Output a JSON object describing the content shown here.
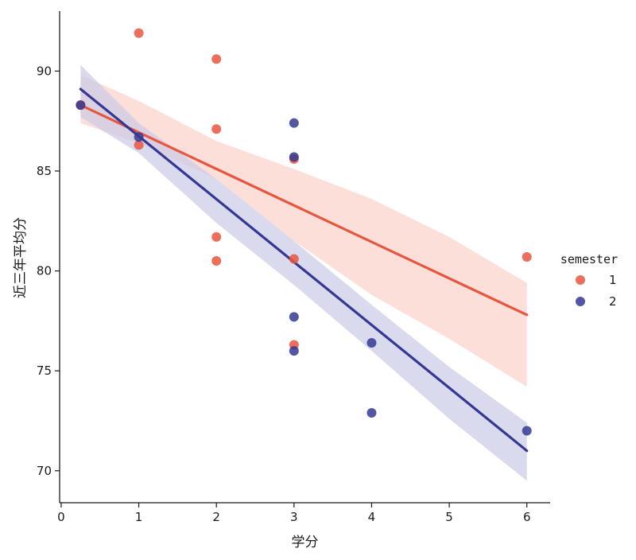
{
  "chart_data": {
    "type": "scatter",
    "title": "",
    "xlabel": "学分",
    "ylabel": "近三年平均分",
    "xlim": [
      -0.02,
      6.3
    ],
    "ylim": [
      68.4,
      93.0
    ],
    "xticks": [
      0,
      1,
      2,
      3,
      4,
      5,
      6
    ],
    "yticks": [
      70,
      75,
      80,
      85,
      90
    ],
    "grid": false,
    "legend": {
      "title": "semester",
      "placement": "right"
    },
    "series": [
      {
        "name": "1",
        "color": "#e8563f",
        "band_color": "#fcd2cb",
        "points": [
          {
            "x": 0.25,
            "y": 88.3
          },
          {
            "x": 1,
            "y": 91.9
          },
          {
            "x": 1,
            "y": 86.3
          },
          {
            "x": 2,
            "y": 90.6
          },
          {
            "x": 2,
            "y": 87.1
          },
          {
            "x": 2,
            "y": 81.7
          },
          {
            "x": 2,
            "y": 80.5
          },
          {
            "x": 3,
            "y": 85.6
          },
          {
            "x": 3,
            "y": 80.6
          },
          {
            "x": 3,
            "y": 76.3
          },
          {
            "x": 6,
            "y": 80.7
          }
        ],
        "fit": {
          "x": [
            0.25,
            6
          ],
          "y": [
            88.3,
            77.8
          ]
        },
        "ci_lower": {
          "x": [
            0.25,
            1,
            2,
            3,
            4,
            5,
            6
          ],
          "y": [
            87.4,
            86.4,
            84.6,
            81.5,
            78.8,
            76.6,
            74.2
          ]
        },
        "ci_upper": {
          "x": [
            0.25,
            1,
            2,
            3,
            4,
            5,
            6
          ],
          "y": [
            89.8,
            88.5,
            86.5,
            85.1,
            83.6,
            81.7,
            79.4
          ]
        }
      },
      {
        "name": "2",
        "color": "#343893",
        "band_color": "#c9cbe6",
        "points": [
          {
            "x": 0.25,
            "y": 88.3
          },
          {
            "x": 1,
            "y": 86.7
          },
          {
            "x": 3,
            "y": 87.4
          },
          {
            "x": 3,
            "y": 85.7
          },
          {
            "x": 3,
            "y": 77.7
          },
          {
            "x": 3,
            "y": 76.0
          },
          {
            "x": 4,
            "y": 76.4
          },
          {
            "x": 4,
            "y": 72.9
          },
          {
            "x": 6,
            "y": 72.0
          }
        ],
        "fit": {
          "x": [
            0.25,
            6
          ],
          "y": [
            89.1,
            71.0
          ]
        },
        "ci_lower": {
          "x": [
            0.25,
            1,
            2,
            3,
            4,
            5,
            6
          ],
          "y": [
            87.7,
            85.9,
            82.4,
            79.3,
            76.0,
            72.6,
            69.5
          ]
        },
        "ci_upper": {
          "x": [
            0.25,
            1,
            2,
            3,
            4,
            5,
            6
          ],
          "y": [
            90.3,
            87.4,
            84.6,
            81.5,
            78.3,
            75.2,
            72.4
          ]
        }
      }
    ]
  }
}
